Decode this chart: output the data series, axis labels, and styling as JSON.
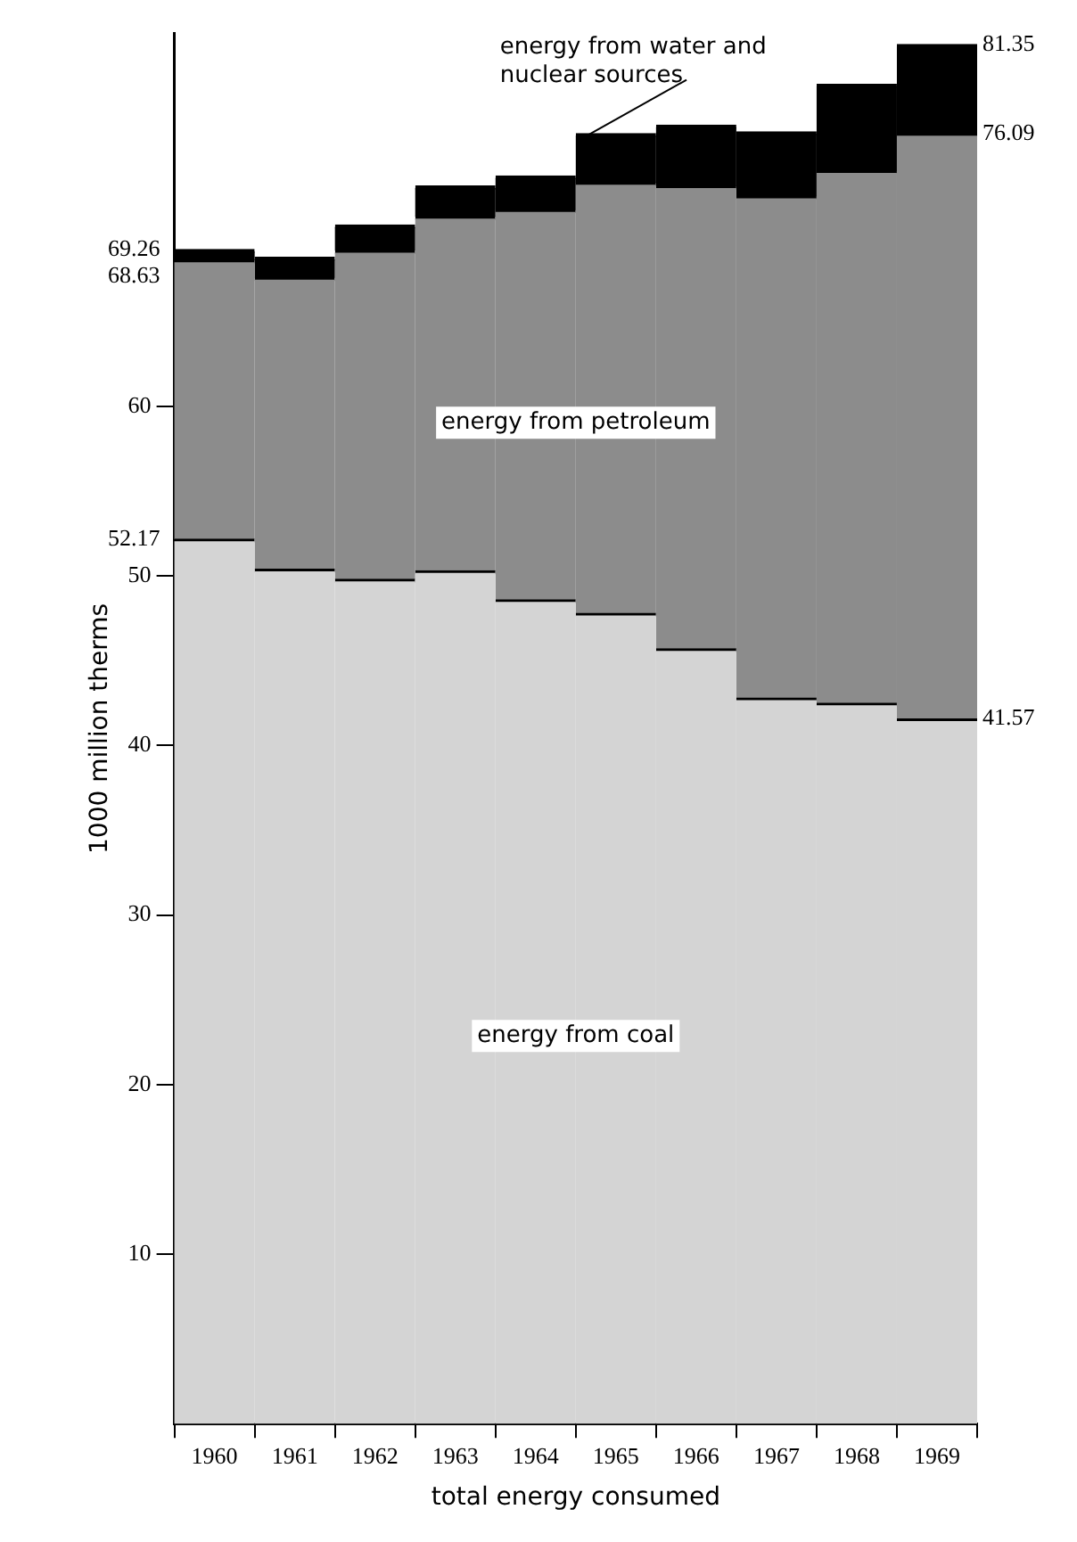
{
  "chart_data": {
    "type": "bar",
    "stacked": true,
    "xlabel": "total energy consumed",
    "ylabel": "1000 million therms",
    "categories": [
      "1960",
      "1961",
      "1962",
      "1963",
      "1964",
      "1965",
      "1966",
      "1967",
      "1968",
      "1969"
    ],
    "series": [
      {
        "name": "energy from coal",
        "color": "#d4d4d4",
        "values": [
          52.17,
          50.4,
          49.8,
          50.3,
          48.6,
          47.8,
          45.7,
          42.8,
          42.5,
          41.57
        ]
      },
      {
        "name": "energy from petroleum",
        "color": "#8c8c8c",
        "values": [
          16.46,
          17.2,
          19.4,
          20.9,
          23.0,
          25.4,
          27.3,
          29.6,
          31.4,
          34.52
        ]
      },
      {
        "name": "energy from water and nuclear sources",
        "color": "#000000",
        "values": [
          0.63,
          1.2,
          1.5,
          1.8,
          2.0,
          2.9,
          3.6,
          3.8,
          5.1,
          5.26
        ]
      }
    ],
    "ylim": [
      0,
      82
    ],
    "yticks": [
      10,
      20,
      30,
      40,
      50,
      60
    ],
    "grid": false,
    "legend": false,
    "annotations": [
      {
        "text": "69.26",
        "x": "1960",
        "y": 69.26
      },
      {
        "text": "68.63",
        "x": "1960",
        "y": 68.63
      },
      {
        "text": "52.17",
        "x": "1960",
        "y": 52.17
      },
      {
        "text": "81.35",
        "x": "1969",
        "y": 81.35
      },
      {
        "text": "76.09",
        "x": "1969",
        "y": 76.09
      },
      {
        "text": "41.57",
        "x": "1969",
        "y": 41.57
      }
    ]
  }
}
